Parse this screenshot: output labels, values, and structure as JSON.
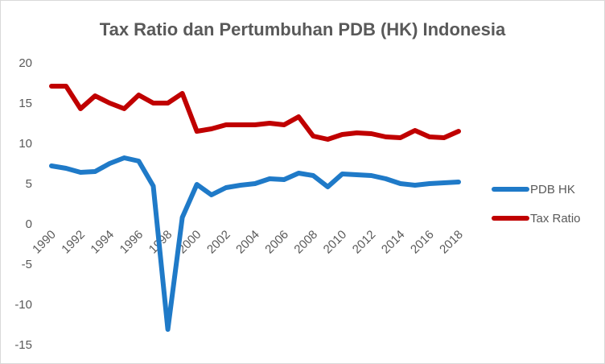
{
  "chart_data": {
    "type": "line",
    "title": "Tax Ratio dan Pertumbuhan PDB (HK) Indonesia",
    "xlabel": "",
    "ylabel": "",
    "ylim": [
      -15,
      20
    ],
    "yticks": [
      20,
      15,
      10,
      5,
      0,
      -5,
      -10,
      -15
    ],
    "xticks": [
      "1990",
      "1992",
      "1994",
      "1996",
      "1998",
      "2000",
      "2002",
      "2004",
      "2006",
      "2008",
      "2010",
      "2012",
      "2014",
      "2016",
      "2018"
    ],
    "x": [
      1990,
      1991,
      1992,
      1993,
      1994,
      1995,
      1996,
      1997,
      1998,
      1999,
      2000,
      2001,
      2002,
      2003,
      2004,
      2005,
      2006,
      2007,
      2008,
      2009,
      2010,
      2011,
      2012,
      2013,
      2014,
      2015,
      2016,
      2017,
      2018
    ],
    "legend_position": "right",
    "series": [
      {
        "name": "PDB HK",
        "color": "#1f7ac8",
        "values": [
          7.2,
          6.9,
          6.4,
          6.5,
          7.5,
          8.2,
          7.8,
          4.7,
          -13.1,
          0.8,
          4.9,
          3.6,
          4.5,
          4.8,
          5.0,
          5.6,
          5.5,
          6.3,
          6.0,
          4.6,
          6.2,
          6.1,
          6.0,
          5.6,
          5.0,
          4.8,
          5.0,
          5.1,
          5.2
        ]
      },
      {
        "name": "Tax Ratio",
        "color": "#c00000",
        "values": [
          17.1,
          17.1,
          14.3,
          15.9,
          15.0,
          14.3,
          16.0,
          15.0,
          15.0,
          16.2,
          11.5,
          11.8,
          12.3,
          12.3,
          12.3,
          12.5,
          12.3,
          13.3,
          10.9,
          10.5,
          11.1,
          11.3,
          11.2,
          10.8,
          10.7,
          11.6,
          10.8,
          10.7,
          11.5
        ]
      }
    ]
  }
}
